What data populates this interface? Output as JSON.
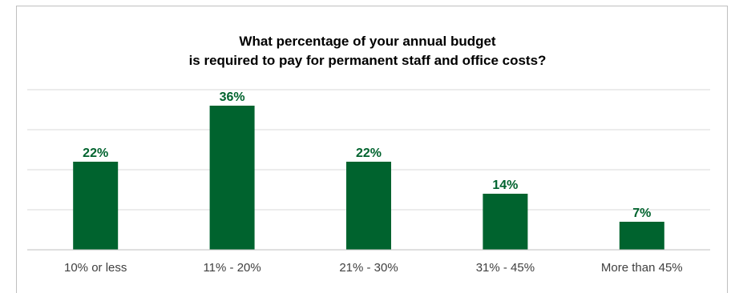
{
  "chart_data": {
    "type": "bar",
    "title_lines": [
      "What percentage of your annual budget",
      "is required to pay for permanent staff and office costs?"
    ],
    "categories": [
      "10% or less",
      "11% - 20%",
      "21% - 30%",
      "31% - 45%",
      "More than 45%"
    ],
    "values": [
      22,
      36,
      22,
      14,
      7
    ],
    "value_labels": [
      "22%",
      "36%",
      "22%",
      "14%",
      "7%"
    ],
    "ylim": [
      0,
      40
    ],
    "gridlines": true,
    "legend": "none",
    "colors": {
      "bar": "#00632e",
      "label": "#00632e",
      "grid": "#d9d9d9",
      "axis": "#bfbfbf",
      "tick_text": "#404040"
    }
  }
}
